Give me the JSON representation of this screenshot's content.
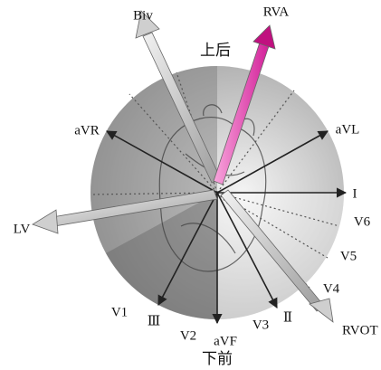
{
  "labels": {
    "biv": "Biv",
    "rva": "RVA",
    "top": "上后",
    "avr": "aVR",
    "avl": "aVL",
    "lead_i": "I",
    "lv": "LV",
    "v6": "V6",
    "v5": "V5",
    "v4": "V4",
    "rvot": "RVOT",
    "v1": "V1",
    "lead_iii": "Ⅲ",
    "v2": "V2",
    "avf": "aVF",
    "v3": "V3",
    "lead_ii": "Ⅱ",
    "bottom": "下前"
  }
}
